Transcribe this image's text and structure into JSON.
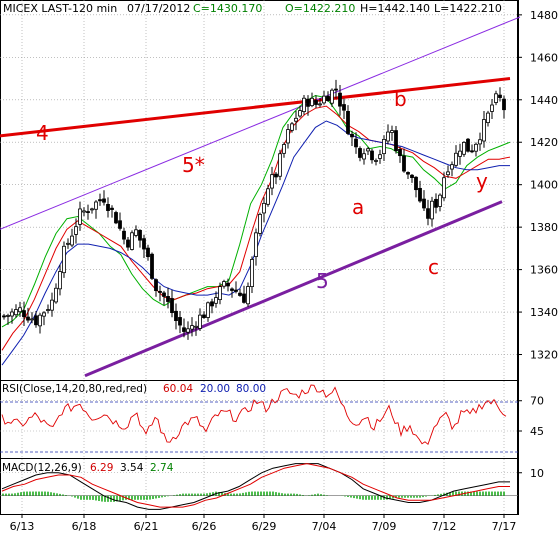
{
  "chart_data": {
    "type": "candlestick",
    "header": {
      "symbol": "MICEX LAST-120 min",
      "date": "07/17/2012",
      "close": "C=1430.170",
      "open": "O=1422.210",
      "high": "H=1442.140",
      "low": "L=1422.210"
    },
    "price_axis": {
      "ticks": [
        "1480",
        "1460",
        "1440",
        "1420",
        "1400",
        "1380",
        "1360",
        "1340",
        "1320"
      ],
      "ylim": [
        1308,
        1487
      ]
    },
    "x_axis": {
      "ticks": [
        "6/13",
        "6/18",
        "6/21",
        "6/26",
        "6/29",
        "7/04",
        "7/09",
        "7/12",
        "7/17"
      ]
    },
    "annotations": [
      {
        "label": "4",
        "color": "#e00000"
      },
      {
        "label": "5*",
        "color": "#e00000"
      },
      {
        "label": "b",
        "color": "#e00000"
      },
      {
        "label": "a",
        "color": "#e00000"
      },
      {
        "label": "c",
        "color": "#e00000"
      },
      {
        "label": "y",
        "color": "#e00000"
      },
      {
        "label": "5",
        "color": "#7a1fa0"
      }
    ],
    "trendlines": [
      {
        "name": "line-4",
        "color": "#e00000",
        "from": [
          0,
          1423
        ],
        "to": [
          510,
          1450
        ]
      },
      {
        "name": "channel-upper",
        "color": "#8a2be2",
        "from": [
          0,
          1379
        ],
        "to": [
          520,
          1479
        ]
      },
      {
        "name": "line-5",
        "color": "#7a1fa0",
        "from": [
          85,
          1310
        ],
        "to": [
          502,
          1392
        ]
      }
    ],
    "price_series": {
      "anchors_x": [
        4,
        20,
        36,
        52,
        62,
        70,
        80,
        92,
        104,
        116,
        126,
        136,
        146,
        156,
        166,
        176,
        186,
        196,
        206,
        216,
        226,
        236,
        246,
        256,
        266,
        276,
        286,
        296,
        306,
        316,
        326,
        336,
        342,
        350,
        358,
        366,
        374,
        382,
        390,
        400,
        410,
        418,
        426,
        432,
        438,
        446,
        454,
        462,
        470,
        478,
        486,
        494,
        502,
        506
      ],
      "anchors_y": [
        1338,
        1341,
        1336,
        1345,
        1366,
        1375,
        1386,
        1390,
        1394,
        1384,
        1372,
        1378,
        1368,
        1352,
        1346,
        1336,
        1330,
        1336,
        1340,
        1348,
        1353,
        1350,
        1346,
        1375,
        1398,
        1405,
        1422,
        1432,
        1440,
        1438,
        1442,
        1445,
        1436,
        1424,
        1415,
        1418,
        1413,
        1416,
        1428,
        1412,
        1404,
        1396,
        1383,
        1390,
        1392,
        1408,
        1412,
        1420,
        1416,
        1422,
        1430,
        1440,
        1440,
        1432
      ]
    },
    "moving_averages": [
      {
        "color": "#00b000",
        "anchors_y": [
          1333,
          1336,
          1341,
          1353,
          1366,
          1377,
          1384,
          1385,
          1381,
          1377,
          1371,
          1367,
          1358,
          1351,
          1346,
          1343,
          1346,
          1348,
          1350,
          1352,
          1352,
          1355,
          1372,
          1391,
          1400,
          1412,
          1427,
          1434,
          1439,
          1442,
          1441,
          1434,
          1426,
          1423,
          1417,
          1418,
          1417,
          1414,
          1413,
          1407,
          1403,
          1398,
          1401,
          1409,
          1413,
          1416,
          1418,
          1420
        ]
      },
      {
        "color": "#e00000",
        "anchors_y": [
          1322,
          1330,
          1336,
          1346,
          1358,
          1370,
          1379,
          1383,
          1380,
          1377,
          1374,
          1371,
          1364,
          1358,
          1352,
          1347,
          1346,
          1348,
          1349,
          1351,
          1352,
          1353,
          1359,
          1376,
          1392,
          1403,
          1418,
          1428,
          1433,
          1436,
          1437,
          1433,
          1428,
          1425,
          1421,
          1420,
          1419,
          1417,
          1415,
          1411,
          1408,
          1404,
          1403,
          1406,
          1409,
          1412,
          1412,
          1413
        ]
      },
      {
        "color": "#1020b0",
        "anchors_y": [
          1315,
          1322,
          1329,
          1338,
          1349,
          1359,
          1368,
          1372,
          1372,
          1371,
          1370,
          1368,
          1365,
          1361,
          1356,
          1352,
          1350,
          1349,
          1348,
          1348,
          1349,
          1348,
          1351,
          1362,
          1376,
          1388,
          1400,
          1413,
          1420,
          1427,
          1430,
          1428,
          1424,
          1422,
          1421,
          1420,
          1419,
          1418,
          1416,
          1414,
          1412,
          1410,
          1408,
          1407,
          1407,
          1408,
          1409,
          1409
        ]
      }
    ],
    "rsi": {
      "label": "RSI(Close,14,20,80,red,red)",
      "value": "60.04",
      "lower": "20.00",
      "upper": "80.00",
      "ticks": [
        "70",
        "45"
      ],
      "range": [
        26,
        83
      ],
      "anchors_y": [
        55,
        50,
        58,
        45,
        62,
        64,
        68,
        56,
        60,
        52,
        49,
        62,
        40,
        58,
        35,
        42,
        52,
        55,
        44,
        58,
        60,
        56,
        61,
        70,
        64,
        72,
        78,
        74,
        79,
        82,
        76,
        78,
        66,
        55,
        52,
        58,
        48,
        56,
        64,
        44,
        50,
        38,
        32,
        46,
        52,
        58,
        47,
        60,
        58,
        64,
        70,
        68,
        62,
        60
      ]
    },
    "macd": {
      "label": "MACD(12,26,9)",
      "values": [
        "6.29",
        "3.54",
        "2.74"
      ],
      "ticks": [
        "10"
      ],
      "range": [
        -8,
        16
      ],
      "macd_line": [
        3,
        5,
        7,
        9,
        10,
        10,
        9,
        6,
        3,
        0,
        -2,
        -3,
        -5,
        -6,
        -6,
        -5,
        -4,
        -3,
        -1,
        1,
        2,
        4,
        7,
        10,
        12,
        13,
        14,
        14,
        14,
        12,
        10,
        7,
        3,
        1,
        -1,
        -2,
        -3,
        -3,
        -2,
        0,
        2,
        3,
        4,
        5,
        6,
        6
      ],
      "signal_line": [
        2,
        4,
        5,
        7,
        8,
        9,
        9,
        8,
        5,
        3,
        1,
        -1,
        -3,
        -4,
        -5,
        -5,
        -5,
        -4,
        -2,
        -1,
        1,
        3,
        5,
        8,
        10,
        12,
        13,
        14,
        13,
        12,
        10,
        8,
        5,
        3,
        1,
        -1,
        -2,
        -2,
        -2,
        -1,
        0,
        1,
        2,
        3,
        4,
        4
      ]
    }
  }
}
